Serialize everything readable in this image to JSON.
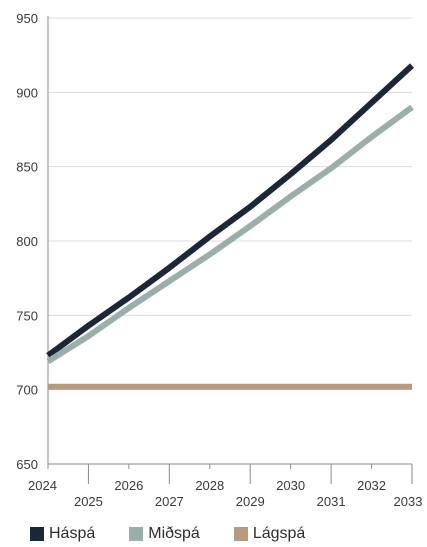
{
  "chart_data": {
    "type": "line",
    "title": "",
    "xlabel": "",
    "ylabel": "",
    "xlim": [
      2024,
      2033
    ],
    "ylim": [
      650,
      950
    ],
    "yticks": [
      650,
      700,
      750,
      800,
      850,
      900,
      950
    ],
    "xticks": [
      2024,
      2025,
      2026,
      2027,
      2028,
      2029,
      2030,
      2031,
      2032,
      2033
    ],
    "grid": "horizontal",
    "legend_position": "bottom",
    "x": [
      2024,
      2025,
      2026,
      2027,
      2028,
      2029,
      2030,
      2031,
      2032,
      2033
    ],
    "series": [
      {
        "name": "Háspá",
        "color": "#1b2639",
        "values": [
          723,
          743,
          762,
          782,
          803,
          823,
          845,
          868,
          893,
          918
        ]
      },
      {
        "name": "Miðspá",
        "color": "#9aaeaa",
        "values": [
          719,
          736,
          755,
          773,
          791,
          810,
          830,
          849,
          870,
          890
        ]
      },
      {
        "name": "Lágspá",
        "color": "#b59a7f",
        "values": [
          702,
          702,
          702,
          702,
          702,
          702,
          702,
          702,
          702,
          702
        ]
      }
    ]
  }
}
